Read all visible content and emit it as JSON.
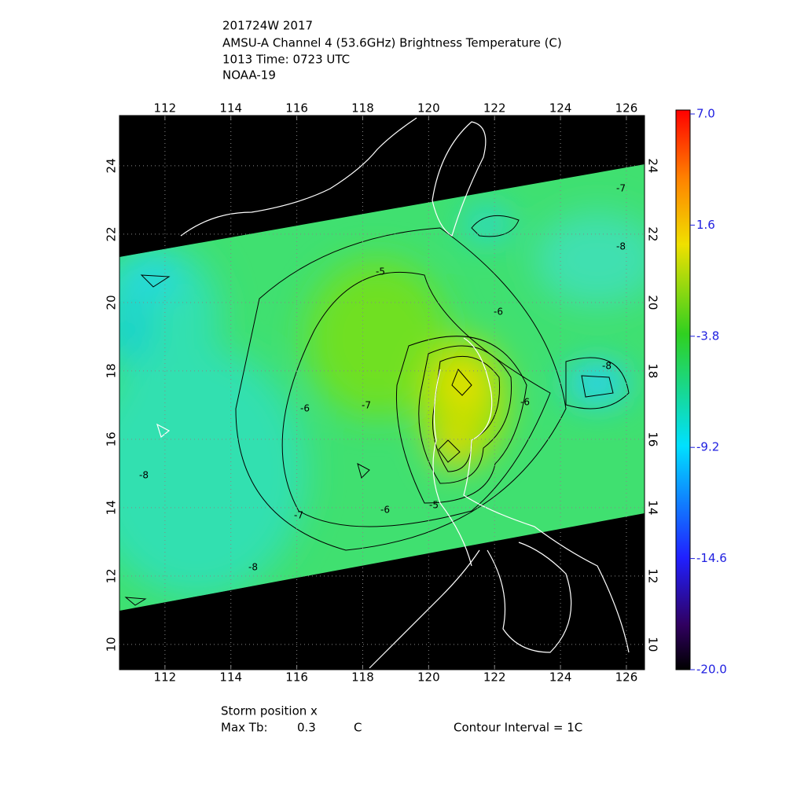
{
  "header": {
    "lines": [
      "201724W 2017",
      "AMSU-A Channel 4 (53.6GHz) Brightness Temperature (C)",
      "1013 Time: 0723 UTC",
      "NOAA-19"
    ]
  },
  "map": {
    "lon_range": [
      110.62,
      126.55
    ],
    "lat_range": [
      9.26,
      25.47
    ],
    "lon_ticks": [
      112,
      114,
      116,
      118,
      120,
      122,
      124,
      126
    ],
    "lat_ticks": [
      10,
      12,
      14,
      16,
      18,
      20,
      22,
      24
    ],
    "contour_labels": [
      -5,
      -6,
      -6,
      -7,
      -8,
      -8,
      -6,
      -8,
      -7,
      -5,
      -6,
      -7,
      -8
    ]
  },
  "colorbar": {
    "range": [
      -20,
      7
    ],
    "ticks": [
      {
        "value": 7,
        "label": "7.0"
      },
      1.6,
      -3.8,
      -9.2,
      -14.6,
      {
        "value": -20,
        "label": "-20.0"
      }
    ]
  },
  "footer": {
    "storm": "Storm position x",
    "max_tb_label": "Max Tb:",
    "max_tb": 0.3,
    "max_tb_unit": "C",
    "contour_interval": "Contour Interval = 1C"
  }
}
